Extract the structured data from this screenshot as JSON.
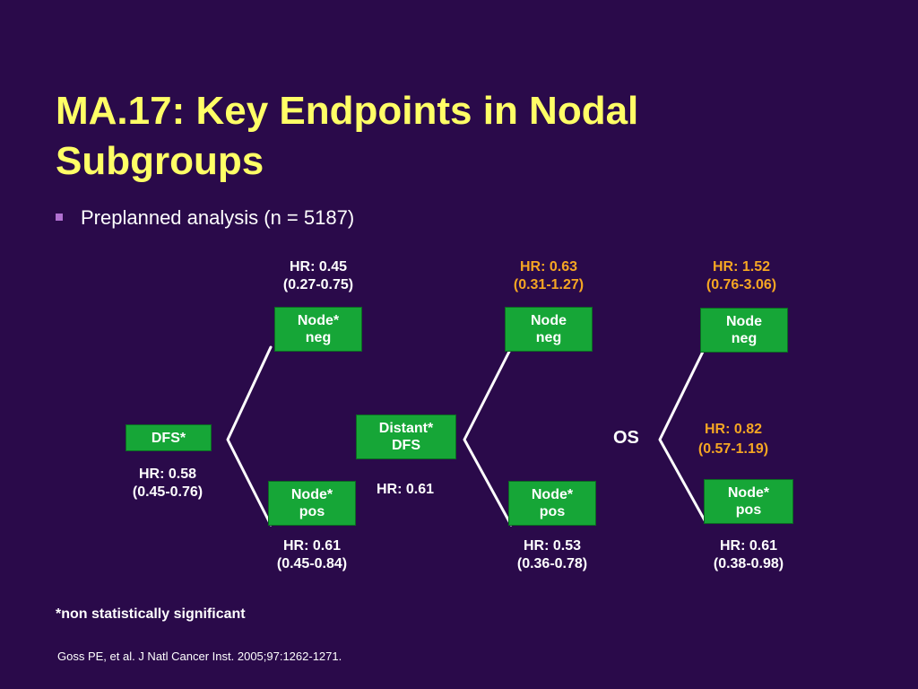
{
  "slide": {
    "title_line1": "MA.17: Key Endpoints in Nodal",
    "title_line2": "Subgroups",
    "bullet": "Preplanned analysis (n = 5187)",
    "footnote": "*non statistically significant",
    "citation": "Goss PE, et al. J Natl Cancer Inst. 2005;97:1262-1271."
  },
  "diagrams": {
    "dfs": {
      "label": "DFS*",
      "hr_line1": "HR: 0.58",
      "hr_line2": "(0.45-0.76)",
      "node_neg": {
        "line1": "Node*",
        "line2": "neg",
        "hr_line1": "HR: 0.45",
        "hr_line2": "(0.27-0.75)"
      },
      "node_pos": {
        "line1": "Node*",
        "line2": "pos",
        "hr_line1": "HR: 0.61",
        "hr_line2": "(0.45-0.84)"
      }
    },
    "distant_dfs": {
      "label_line1": "Distant*",
      "label_line2": "DFS",
      "hr": "HR: 0.61",
      "node_neg": {
        "line1": "Node",
        "line2": "neg",
        "hr_line1": "HR: 0.63",
        "hr_line2": "(0.31-1.27)"
      },
      "node_pos": {
        "line1": "Node*",
        "line2": "pos",
        "hr_line1": "HR: 0.53",
        "hr_line2": "(0.36-0.78)"
      }
    },
    "os": {
      "label": "OS",
      "hr_line1": "HR: 0.82",
      "hr_line2": "(0.57-1.19)",
      "node_neg": {
        "line1": "Node",
        "line2": "neg",
        "hr_line1": "HR: 1.52",
        "hr_line2": "(0.76-3.06)"
      },
      "node_pos": {
        "line1": "Node*",
        "line2": "pos",
        "hr_line1": "HR: 0.61",
        "hr_line2": "(0.38-0.98)"
      }
    }
  },
  "colors": {
    "background": "#2a0a4a",
    "title": "#ffff66",
    "box": "#16a637",
    "nonsignificant_hr": "#f5a623",
    "bullet": "#b070d0"
  }
}
